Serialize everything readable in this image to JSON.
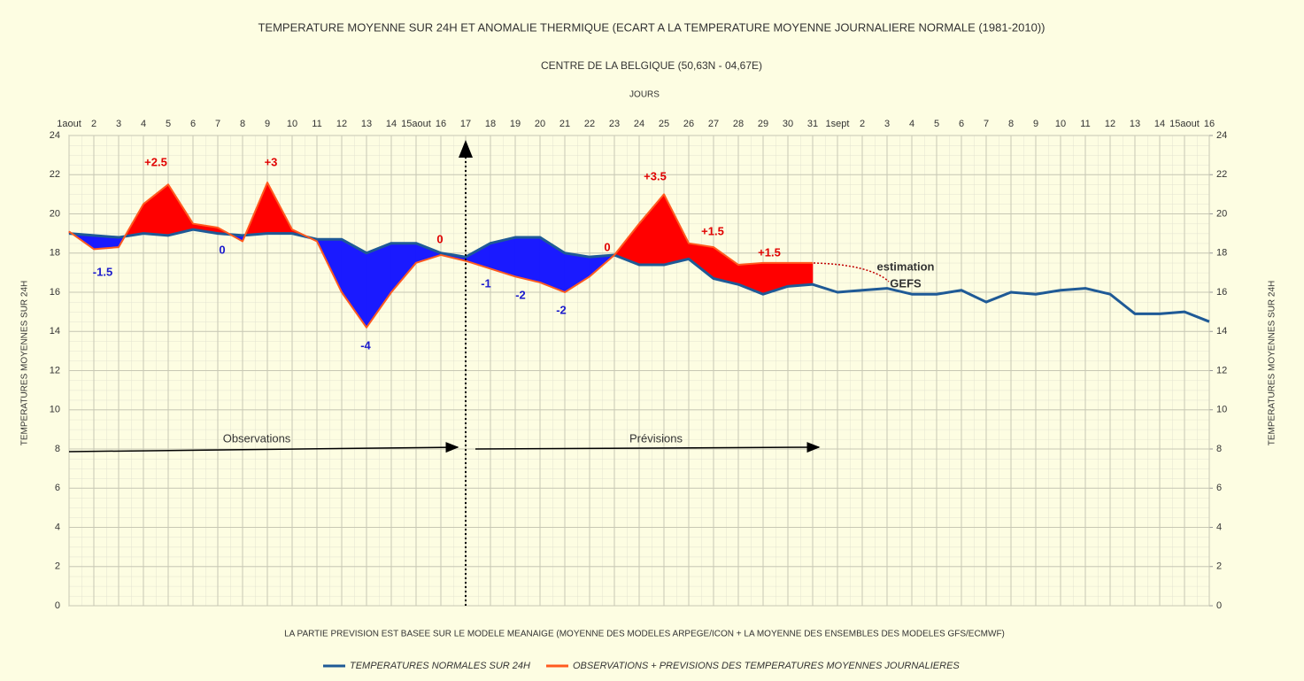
{
  "chart_data": {
    "type": "line",
    "title": "TEMPERATURE MOYENNE SUR 24H ET ANOMALIE THERMIQUE (ECART A LA TEMPERATURE MOYENNE JOURNALIERE NORMALE (1981-2010))",
    "subtitle": "CENTRE DE LA BELGIQUE (50,63N - 04,67E)",
    "x_label": "JOURS",
    "y_label": "TEMPERATURES MOYENNES SUR 24H",
    "y2_label": "TEMPERATURES MOYENNES SUR 24H",
    "note": "LA PARTIE PREVISION EST BASEE SUR LE MODELE MEANAIGE (MOYENNE DES MODELES ARPEGE/ICON + LA MOYENNE DES ENSEMBLES DES MODELES GFS/ECMWF)",
    "categories": [
      "1aout",
      "2",
      "3",
      "4",
      "5",
      "6",
      "7",
      "8",
      "9",
      "10",
      "11",
      "12",
      "13",
      "14",
      "15aout",
      "16",
      "17",
      "18",
      "19",
      "20",
      "21",
      "22",
      "23",
      "24",
      "25",
      "26",
      "27",
      "28",
      "29",
      "30",
      "31",
      "1sept",
      "2",
      "3",
      "4",
      "5",
      "6",
      "7",
      "8",
      "9",
      "10",
      "11",
      "12",
      "13",
      "14",
      "15aout",
      "16"
    ],
    "series": [
      {
        "name": "TEMPERATURES NORMALES SUR 24H",
        "color": "#1f5a96",
        "values": [
          19.0,
          18.9,
          18.8,
          19.0,
          18.9,
          19.2,
          19.0,
          18.9,
          19.0,
          19.0,
          18.7,
          18.7,
          18.0,
          18.5,
          18.5,
          18.0,
          17.8,
          18.5,
          18.8,
          18.8,
          18.0,
          17.8,
          17.9,
          17.4,
          17.4,
          17.7,
          16.7,
          16.4,
          15.9,
          16.3,
          16.4,
          16.0,
          16.1,
          16.2,
          15.9,
          15.9,
          16.1,
          15.5,
          16.0,
          15.9,
          16.1,
          16.2,
          15.9,
          14.9,
          14.9,
          15.0,
          14.5
        ]
      },
      {
        "name": "OBSERVATIONS + PREVISIONS DES TEMPERATURES MOYENNES JOURNALIERES",
        "color": "#ff5a1f",
        "values": [
          19.1,
          18.2,
          18.3,
          20.5,
          21.5,
          19.5,
          19.3,
          18.6,
          21.6,
          19.2,
          18.6,
          16.0,
          14.2,
          16.0,
          17.5,
          17.9,
          17.6,
          17.2,
          16.8,
          16.5,
          16.0,
          16.8,
          17.9,
          19.5,
          21.0,
          18.5,
          18.3,
          17.4,
          17.5,
          17.5,
          17.5,
          null,
          null,
          null,
          null,
          null,
          null,
          null,
          null,
          null,
          null,
          null,
          null,
          null,
          null,
          null,
          null
        ]
      }
    ],
    "above_color": "#ff0000",
    "below_color": "#1a1aff",
    "ylim": [
      0,
      24
    ],
    "yticks": [
      0,
      2,
      4,
      6,
      8,
      10,
      12,
      14,
      16,
      18,
      20,
      22,
      24
    ],
    "y2lim": [
      0,
      24
    ],
    "y2ticks": [
      0,
      2,
      4,
      6,
      8,
      10,
      12,
      14,
      16,
      18,
      20,
      22,
      24
    ],
    "grid": true,
    "annotations": [
      "+2.5",
      "+3",
      "0",
      "-1.5",
      "-4",
      "0",
      "-1",
      "-2",
      "-2",
      "0",
      "+3.5",
      "+1.5",
      "+1.5",
      "estimation",
      "GEFS",
      "Observations",
      "Prévisions"
    ]
  }
}
